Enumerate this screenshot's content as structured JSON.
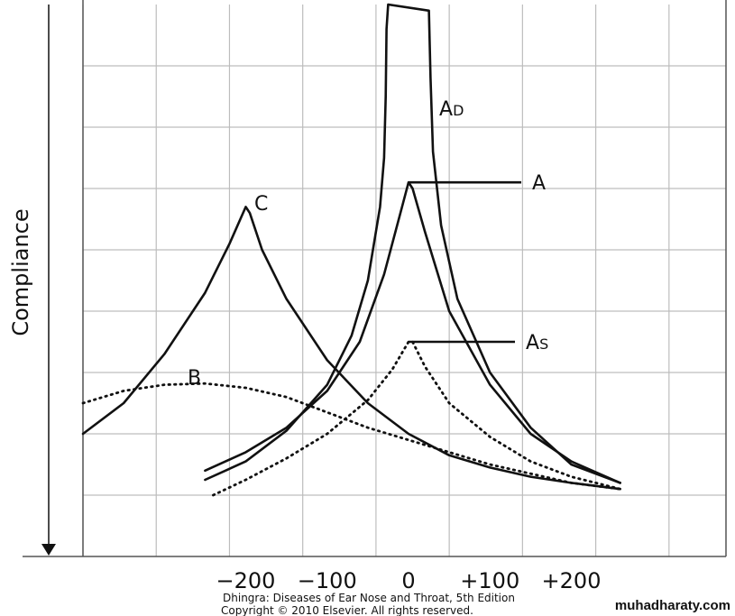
{
  "chart_data": {
    "type": "line",
    "title": "",
    "xlabel": "",
    "ylabel": "Compliance",
    "x_ticks": [
      "−200",
      "−100",
      "0",
      "+100",
      "+200"
    ],
    "x_tick_values": [
      -200,
      -100,
      0,
      100,
      200
    ],
    "xlim": [
      -400,
      390
    ],
    "ylim": [
      0,
      9
    ],
    "grid": true,
    "series": [
      {
        "name": "A",
        "style": "solid",
        "peak_label_line": true,
        "points": [
          [
            -250,
            1.4
          ],
          [
            -200,
            1.7
          ],
          [
            -150,
            2.1
          ],
          [
            -100,
            2.7
          ],
          [
            -60,
            3.5
          ],
          [
            -30,
            4.6
          ],
          [
            -10,
            5.6
          ],
          [
            0,
            6.1
          ],
          [
            5,
            6.0
          ],
          [
            20,
            5.3
          ],
          [
            50,
            4.0
          ],
          [
            100,
            2.8
          ],
          [
            150,
            2.0
          ],
          [
            200,
            1.55
          ],
          [
            260,
            1.2
          ]
        ]
      },
      {
        "name": "AS",
        "label_parts": [
          "A",
          "S"
        ],
        "style": "dotted",
        "peak_label_line": true,
        "points": [
          [
            -240,
            1.0
          ],
          [
            -200,
            1.25
          ],
          [
            -150,
            1.6
          ],
          [
            -100,
            2.0
          ],
          [
            -50,
            2.55
          ],
          [
            -20,
            3.05
          ],
          [
            0,
            3.5
          ],
          [
            5,
            3.5
          ],
          [
            20,
            3.1
          ],
          [
            50,
            2.5
          ],
          [
            100,
            1.95
          ],
          [
            150,
            1.55
          ],
          [
            200,
            1.3
          ],
          [
            260,
            1.1
          ]
        ]
      },
      {
        "name": "AD",
        "label_parts": [
          "A",
          "D"
        ],
        "style": "solid",
        "peak_label_line": false,
        "points": [
          [
            -250,
            1.25
          ],
          [
            -200,
            1.55
          ],
          [
            -150,
            2.05
          ],
          [
            -100,
            2.8
          ],
          [
            -70,
            3.6
          ],
          [
            -50,
            4.5
          ],
          [
            -35,
            5.7
          ],
          [
            -30,
            6.5
          ],
          [
            -28,
            7.5
          ],
          [
            -27,
            8.6
          ],
          [
            -25,
            9.0
          ],
          [
            25,
            8.9
          ],
          [
            27,
            7.8
          ],
          [
            30,
            6.6
          ],
          [
            40,
            5.4
          ],
          [
            60,
            4.2
          ],
          [
            100,
            3.0
          ],
          [
            150,
            2.1
          ],
          [
            200,
            1.5
          ],
          [
            260,
            1.2
          ]
        ]
      },
      {
        "name": "B",
        "style": "dotted",
        "peak_label_line": false,
        "points": [
          [
            -400,
            2.5
          ],
          [
            -350,
            2.7
          ],
          [
            -300,
            2.8
          ],
          [
            -250,
            2.82
          ],
          [
            -200,
            2.75
          ],
          [
            -150,
            2.6
          ],
          [
            -100,
            2.35
          ],
          [
            -50,
            2.1
          ],
          [
            0,
            1.9
          ],
          [
            50,
            1.7
          ],
          [
            100,
            1.5
          ],
          [
            150,
            1.35
          ],
          [
            200,
            1.2
          ],
          [
            260,
            1.1
          ]
        ]
      },
      {
        "name": "C",
        "style": "solid",
        "peak_label_line": false,
        "points": [
          [
            -400,
            2.0
          ],
          [
            -350,
            2.5
          ],
          [
            -300,
            3.3
          ],
          [
            -250,
            4.3
          ],
          [
            -220,
            5.1
          ],
          [
            -200,
            5.7
          ],
          [
            -195,
            5.6
          ],
          [
            -180,
            5.0
          ],
          [
            -150,
            4.2
          ],
          [
            -100,
            3.2
          ],
          [
            -50,
            2.5
          ],
          [
            0,
            2.0
          ],
          [
            50,
            1.65
          ],
          [
            100,
            1.45
          ],
          [
            150,
            1.3
          ],
          [
            200,
            1.2
          ],
          [
            260,
            1.1
          ]
        ]
      }
    ]
  },
  "credit": {
    "line1": "Dhingra: Diseases of Ear Nose and Throat, 5th Edition",
    "line2": "Copyright © 2010 Elsevier. All rights reserved."
  },
  "watermark": "muhadharaty.com",
  "colors": {
    "ink": "#111111",
    "grid": "#bdbdbd",
    "background": "#ffffff"
  }
}
